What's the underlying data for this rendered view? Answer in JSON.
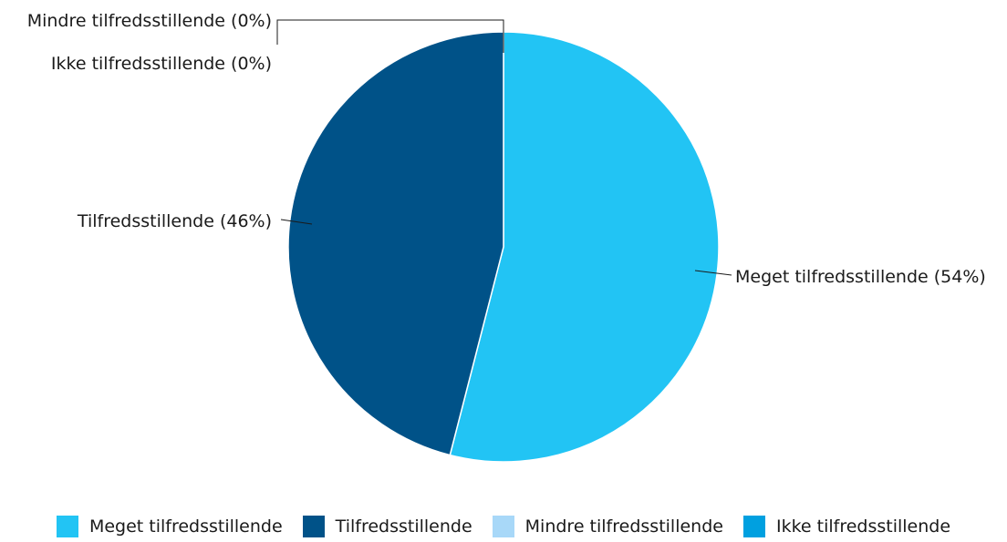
{
  "chart_data": {
    "type": "pie",
    "categories": [
      "Meget tilfredsstillende",
      "Tilfredsstillende",
      "Mindre tilfredsstillende",
      "Ikke tilfredsstillende"
    ],
    "values": [
      54,
      46,
      0,
      0
    ],
    "slice_labels": [
      "Meget tilfredsstillende (54%)",
      "Tilfredsstillende (46%)",
      "Mindre tilfredsstillende (0%)",
      "Ikke tilfredsstillende (0%)"
    ],
    "colors": [
      "#22c4f4",
      "#005288",
      "#a8d8f8",
      "#00a0e0"
    ],
    "legend": {
      "placement": "bottom",
      "entries": [
        "Meget tilfredsstillende",
        "Tilfredsstillende",
        "Mindre tilfredsstillende",
        "Ikke tilfredsstillende"
      ]
    }
  }
}
